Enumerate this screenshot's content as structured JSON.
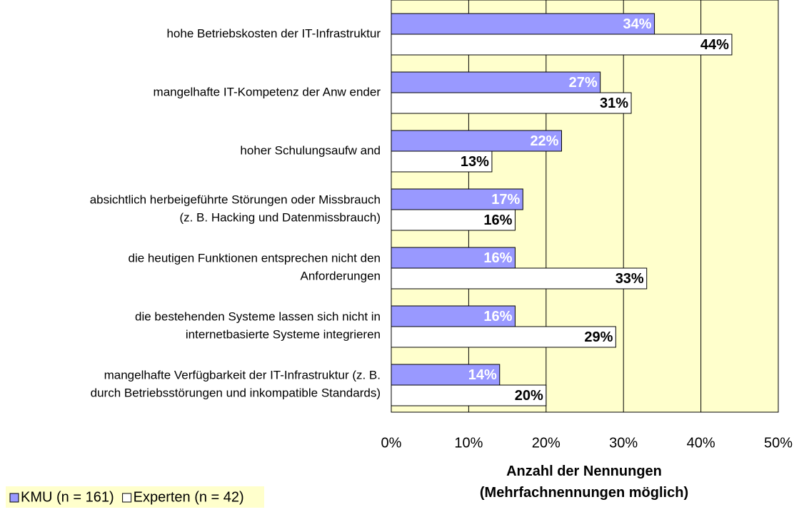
{
  "chart_data": {
    "type": "bar",
    "orientation": "horizontal",
    "categories": [
      "hohe Betriebskosten der IT-Infrastruktur",
      "mangelhafte IT-Kompetenz der Anw ender",
      "hoher Schulungsaufw and",
      "absichtlich herbeigeführte Störungen oder Missbrauch\n(z. B. Hacking und Datenmissbrauch)",
      "die heutigen Funktionen entsprechen nicht den\nAnforderungen",
      "die bestehenden Systeme lassen sich nicht in\ninternetbasierte Systeme integrieren",
      "mangelhafte Verfügbarkeit der IT-Infrastruktur (z. B.\ndurch Betriebsstörungen und inkompatible Standards)"
    ],
    "series": [
      {
        "name": "KMU (n = 161)",
        "color": "#9999ff",
        "values": [
          34,
          27,
          22,
          17,
          16,
          16,
          14
        ],
        "value_labels": [
          "34%",
          "27%",
          "22%",
          "17%",
          "16%",
          "16%",
          "14%"
        ]
      },
      {
        "name": "Experten (n = 42)",
        "color": "#ffffff",
        "values": [
          44,
          31,
          13,
          16,
          33,
          29,
          20
        ],
        "value_labels": [
          "44%",
          "31%",
          "13%",
          "16%",
          "33%",
          "29%",
          "20%"
        ]
      }
    ],
    "xlim": [
      0,
      50
    ],
    "xticks": [
      {
        "value": 0,
        "label": "0%"
      },
      {
        "value": 10,
        "label": "10%"
      },
      {
        "value": 20,
        "label": "20%"
      },
      {
        "value": 30,
        "label": "30%"
      },
      {
        "value": 40,
        "label": "40%"
      },
      {
        "value": 50,
        "label": "50%"
      }
    ],
    "x_label": "Anzahl der Nennungen\n(Mehrfachnennungen möglich)",
    "plot_background": "#ffffcc",
    "grid": true,
    "legend": "bottom-left"
  }
}
